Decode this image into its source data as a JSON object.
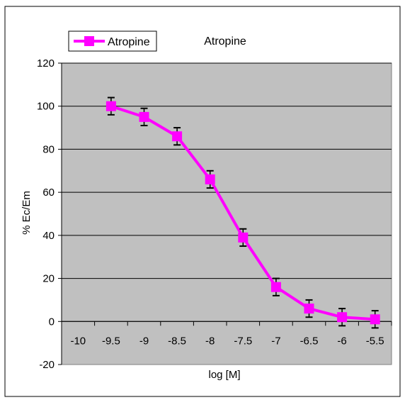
{
  "chart_data": {
    "type": "line",
    "title": "Atropine",
    "xlabel": "log [M]",
    "ylabel": "% Ec/Em",
    "x_ticks": [
      "-10",
      "-9.5",
      "-9",
      "-8.5",
      "-8",
      "-7.5",
      "-7",
      "-6.5",
      "-6",
      "-5.5"
    ],
    "y_ticks": [
      "-20",
      "0",
      "20",
      "40",
      "60",
      "80",
      "100",
      "120"
    ],
    "xlim": [
      -10.25,
      -5.25
    ],
    "ylim": [
      -20,
      120
    ],
    "grid": true,
    "legend_position": "top-left",
    "series": [
      {
        "name": "Atropine",
        "color": "#ff00ff",
        "x": [
          -9.5,
          -9,
          -8.5,
          -8,
          -7.5,
          -7,
          -6.5,
          -6,
          -5.5
        ],
        "y": [
          100,
          95,
          86,
          66,
          39,
          16,
          6,
          2,
          1
        ],
        "error": [
          4,
          4,
          4,
          4,
          4,
          4,
          4,
          4,
          4
        ]
      }
    ]
  }
}
